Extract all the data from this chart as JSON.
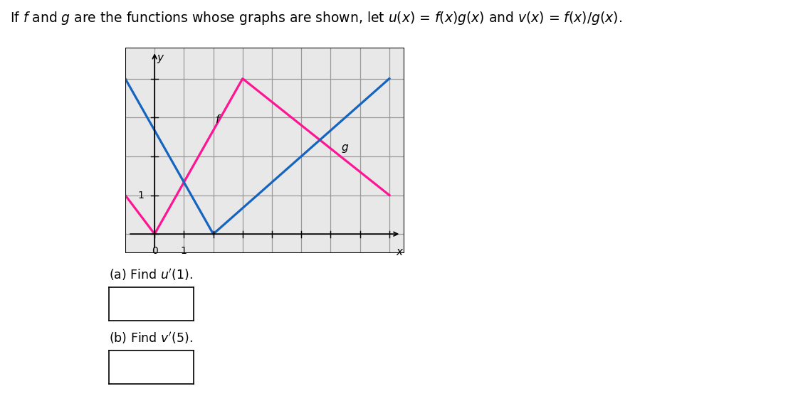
{
  "f_color": "#FF1493",
  "g_color": "#1464C0",
  "f_points": [
    [
      -1,
      1
    ],
    [
      0,
      0
    ],
    [
      3,
      4
    ],
    [
      8,
      1
    ]
  ],
  "g_points": [
    [
      -1,
      4
    ],
    [
      2,
      0
    ],
    [
      8,
      4
    ]
  ],
  "xlim": [
    -1,
    8.5
  ],
  "ylim": [
    -0.5,
    4.8
  ],
  "xticks": [
    0,
    1,
    2,
    3,
    4,
    5,
    6,
    7,
    8
  ],
  "yticks": [
    0,
    1,
    2,
    3,
    4
  ],
  "grid_color": "#999999",
  "background_color": "#e8e8e8",
  "figure_width": 11.35,
  "figure_height": 5.57
}
